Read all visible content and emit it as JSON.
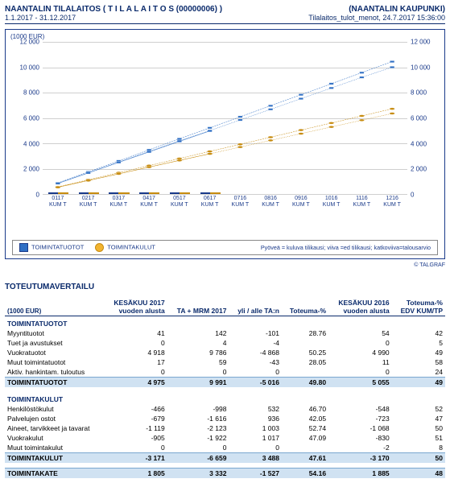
{
  "header": {
    "title_left": "NAANTALIN TILALAITOS ( T I L A L A I T O S (00000006) )",
    "title_right": "(NAANTALIN KAUPUNKI)",
    "sub_left": "1.1.2017 - 31.12.2017",
    "sub_right": "Tilalaitos_tulot_menot, 24.7.2017 15:36:00"
  },
  "chart": {
    "unit_label": "(1000 EUR)",
    "ylim": [
      0,
      12000
    ],
    "ytick_step": 2000,
    "yticks": [
      0,
      2000,
      4000,
      6000,
      8000,
      10000,
      12000
    ],
    "ytick_labels": [
      "0",
      "2 000",
      "4 000",
      "6 000",
      "8 000",
      "10 000",
      "12 000"
    ],
    "categories": [
      "0117",
      "0217",
      "0317",
      "0417",
      "0517",
      "0617",
      "0716",
      "0816",
      "0916",
      "1016",
      "1116",
      "1216"
    ],
    "cat_sub": "KUM T",
    "bar_months": 6,
    "blue_vals": [
      830,
      1660,
      2490,
      3320,
      4150,
      4975
    ],
    "yellow_vals": [
      530,
      1060,
      1590,
      2120,
      2650,
      3171
    ],
    "line_rev_curr": [
      830,
      1660,
      2490,
      3320,
      4150,
      4975
    ],
    "line_rev_dash1": [
      840,
      1680,
      2520,
      3360,
      4200,
      5000,
      5840,
      6680,
      7520,
      8360,
      9200,
      10000
    ],
    "line_rev_dash2": [
      870,
      1740,
      2610,
      3480,
      4350,
      5220,
      6090,
      6960,
      7830,
      8700,
      9570,
      10440
    ],
    "line_exp_curr": [
      530,
      1060,
      1590,
      2120,
      2650,
      3171
    ],
    "line_exp_dash1": [
      530,
      1060,
      1590,
      2120,
      2650,
      3170,
      3700,
      4230,
      4760,
      5290,
      5820,
      6350
    ],
    "line_exp_dash2": [
      560,
      1120,
      1680,
      2240,
      2800,
      3360,
      3920,
      4480,
      5040,
      5600,
      6160,
      6720
    ],
    "colors": {
      "bar_blue": "#2f6fc4",
      "bar_yellow": "#f2b430",
      "grid": "#cfcfcf",
      "text": "#1a3a8a"
    },
    "legend": {
      "rev": "TOIMINTATUOTOT",
      "exp": "TOIMINTAKULUT",
      "note": "Pyöveä = kuluva tilikausi; viiva =ed tilikausi; katkoviiva=talousarvio"
    },
    "credit": "© TALGRAF"
  },
  "compare": {
    "title": "TOTEUTUMAVERTAILU",
    "unit": "(1000 EUR)",
    "columns": [
      "KESÄKUU 2017\nvuoden alusta",
      "TA + MRM 2017",
      "yli / alle TA:n",
      "Toteuma-%",
      "KESÄKUU 2016\nvuoden alusta",
      "Toteuma-%\nEDV KUM/TP"
    ],
    "groups": [
      {
        "name": "TOIMINTATUOTOT",
        "rows": [
          {
            "label": "Myyntituotot",
            "c": [
              "41",
              "142",
              "-101",
              "28.76",
              "54",
              "42"
            ]
          },
          {
            "label": "Tuet ja avustukset",
            "c": [
              "0",
              "4",
              "-4",
              "",
              "0",
              "5"
            ]
          },
          {
            "label": "Vuokratuotot",
            "c": [
              "4 918",
              "9 786",
              "-4 868",
              "50.25",
              "4 990",
              "49"
            ]
          },
          {
            "label": "Muut toimintatuotot",
            "c": [
              "17",
              "59",
              "-43",
              "28.05",
              "11",
              "58"
            ]
          },
          {
            "label": "Aktiv. hankintam. tuloutus",
            "c": [
              "0",
              "0",
              "0",
              "",
              "0",
              "24"
            ]
          }
        ],
        "total": {
          "label": "TOIMINTATUOTOT",
          "c": [
            "4 975",
            "9 991",
            "-5 016",
            "49.80",
            "5 055",
            "49"
          ]
        }
      },
      {
        "name": "TOIMINTAKULUT",
        "rows": [
          {
            "label": "Henkilöstökulut",
            "c": [
              "-466",
              "-998",
              "532",
              "46.70",
              "-548",
              "52"
            ]
          },
          {
            "label": "Palvelujen ostot",
            "c": [
              "-679",
              "-1 616",
              "936",
              "42.05",
              "-723",
              "47"
            ]
          },
          {
            "label": "Aineet, tarvikkeet ja tavarat",
            "c": [
              "-1 119",
              "-2 123",
              "1 003",
              "52.74",
              "-1 068",
              "50"
            ]
          },
          {
            "label": "Vuokrakulut",
            "c": [
              "-905",
              "-1 922",
              "1 017",
              "47.09",
              "-830",
              "51"
            ]
          },
          {
            "label": "Muut toimintakulut",
            "c": [
              "0",
              "0",
              "0",
              "",
              "-2",
              "8"
            ]
          }
        ],
        "total": {
          "label": "TOIMINTAKULUT",
          "c": [
            "-3 171",
            "-6 659",
            "3 488",
            "47.61",
            "-3 170",
            "50"
          ]
        }
      }
    ],
    "grand": {
      "label": "TOIMINTAKATE",
      "c": [
        "1 805",
        "3 332",
        "-1 527",
        "54.16",
        "1 885",
        "48"
      ]
    }
  }
}
